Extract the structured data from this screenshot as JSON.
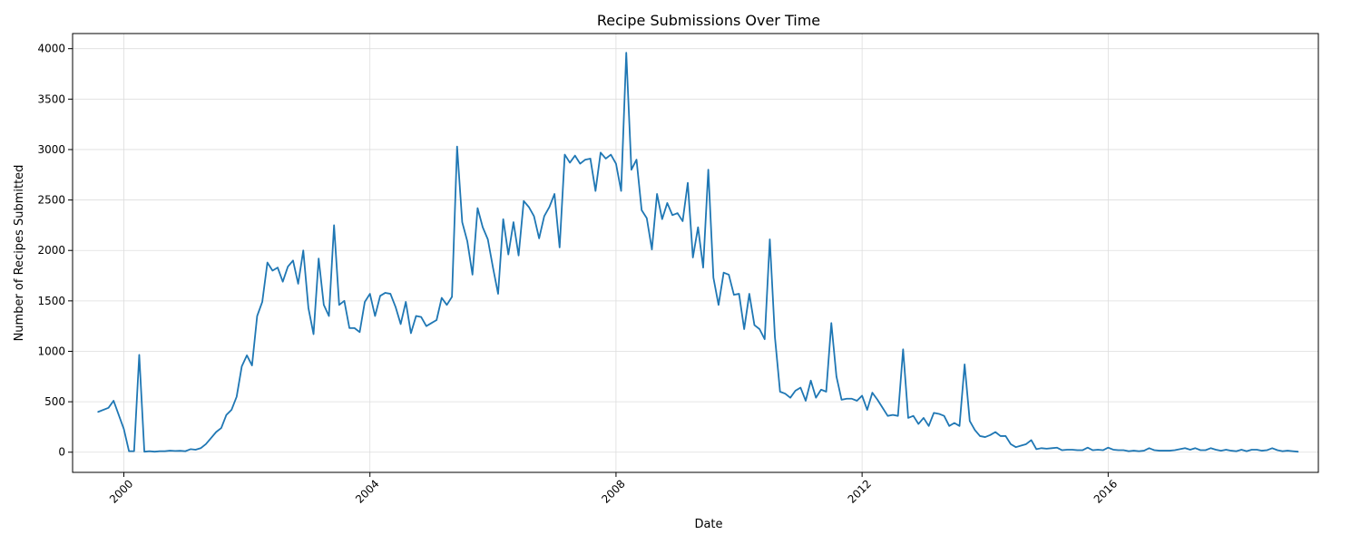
{
  "chart_data": {
    "type": "line",
    "title": "Recipe Submissions Over Time",
    "xlabel": "Date",
    "ylabel": "Number of Recipes Submitted",
    "xlim": [
      "1999-03-01",
      "2019-06-01"
    ],
    "ylim": [
      -200,
      4150
    ],
    "x_ticks": [
      "2000",
      "2004",
      "2008",
      "2012",
      "2016"
    ],
    "y_ticks": [
      0,
      500,
      1000,
      1500,
      2000,
      2500,
      3000,
      3500,
      4000
    ],
    "grid": true,
    "series": [
      {
        "color": "#1f77b4",
        "points": [
          [
            "1999-08",
            400
          ],
          [
            "1999-10",
            440
          ],
          [
            "1999-11",
            510
          ],
          [
            "2000-01",
            230
          ],
          [
            "2000-02",
            10
          ],
          [
            "2000-03",
            10
          ],
          [
            "2000-04",
            965
          ],
          [
            "2000-05",
            5
          ],
          [
            "2000-06",
            10
          ],
          [
            "2000-07",
            5
          ],
          [
            "2000-08",
            10
          ],
          [
            "2000-09",
            10
          ],
          [
            "2000-10",
            15
          ],
          [
            "2000-11",
            12
          ],
          [
            "2000-12",
            14
          ],
          [
            "2001-01",
            10
          ],
          [
            "2001-02",
            30
          ],
          [
            "2001-03",
            25
          ],
          [
            "2001-04",
            40
          ],
          [
            "2001-05",
            80
          ],
          [
            "2001-06",
            140
          ],
          [
            "2001-07",
            200
          ],
          [
            "2001-08",
            240
          ],
          [
            "2001-09",
            370
          ],
          [
            "2001-10",
            420
          ],
          [
            "2001-11",
            550
          ],
          [
            "2001-12",
            850
          ],
          [
            "2002-01",
            960
          ],
          [
            "2002-02",
            860
          ],
          [
            "2002-03",
            1350
          ],
          [
            "2002-04",
            1490
          ],
          [
            "2002-05",
            1880
          ],
          [
            "2002-06",
            1800
          ],
          [
            "2002-07",
            1830
          ],
          [
            "2002-08",
            1690
          ],
          [
            "2002-09",
            1840
          ],
          [
            "2002-10",
            1900
          ],
          [
            "2002-11",
            1670
          ],
          [
            "2002-12",
            2000
          ],
          [
            "2003-01",
            1430
          ],
          [
            "2003-02",
            1170
          ],
          [
            "2003-03",
            1920
          ],
          [
            "2003-04",
            1460
          ],
          [
            "2003-05",
            1350
          ],
          [
            "2003-06",
            2250
          ],
          [
            "2003-07",
            1460
          ],
          [
            "2003-08",
            1500
          ],
          [
            "2003-09",
            1230
          ],
          [
            "2003-10",
            1230
          ],
          [
            "2003-11",
            1190
          ],
          [
            "2003-12",
            1490
          ],
          [
            "2004-01",
            1570
          ],
          [
            "2004-02",
            1350
          ],
          [
            "2004-03",
            1550
          ],
          [
            "2004-04",
            1580
          ],
          [
            "2004-05",
            1570
          ],
          [
            "2004-06",
            1440
          ],
          [
            "2004-07",
            1270
          ],
          [
            "2004-08",
            1490
          ],
          [
            "2004-09",
            1180
          ],
          [
            "2004-10",
            1350
          ],
          [
            "2004-11",
            1340
          ],
          [
            "2004-12",
            1250
          ],
          [
            "2005-01",
            1280
          ],
          [
            "2005-02",
            1310
          ],
          [
            "2005-03",
            1530
          ],
          [
            "2005-04",
            1460
          ],
          [
            "2005-05",
            1540
          ],
          [
            "2005-06",
            3030
          ],
          [
            "2005-07",
            2280
          ],
          [
            "2005-08",
            2090
          ],
          [
            "2005-09",
            1760
          ],
          [
            "2005-10",
            2420
          ],
          [
            "2005-11",
            2230
          ],
          [
            "2005-12",
            2110
          ],
          [
            "2006-01",
            1830
          ],
          [
            "2006-02",
            1570
          ],
          [
            "2006-03",
            2310
          ],
          [
            "2006-04",
            1960
          ],
          [
            "2006-05",
            2280
          ],
          [
            "2006-06",
            1950
          ],
          [
            "2006-07",
            2490
          ],
          [
            "2006-08",
            2430
          ],
          [
            "2006-09",
            2340
          ],
          [
            "2006-10",
            2120
          ],
          [
            "2006-11",
            2340
          ],
          [
            "2006-12",
            2430
          ],
          [
            "2007-01",
            2560
          ],
          [
            "2007-02",
            2030
          ],
          [
            "2007-03",
            2950
          ],
          [
            "2007-04",
            2870
          ],
          [
            "2007-05",
            2940
          ],
          [
            "2007-06",
            2860
          ],
          [
            "2007-07",
            2900
          ],
          [
            "2007-08",
            2910
          ],
          [
            "2007-09",
            2590
          ],
          [
            "2007-10",
            2970
          ],
          [
            "2007-11",
            2910
          ],
          [
            "2007-12",
            2950
          ],
          [
            "2008-01",
            2860
          ],
          [
            "2008-02",
            2590
          ],
          [
            "2008-03",
            3960
          ],
          [
            "2008-04",
            2800
          ],
          [
            "2008-05",
            2900
          ],
          [
            "2008-06",
            2400
          ],
          [
            "2008-07",
            2320
          ],
          [
            "2008-08",
            2010
          ],
          [
            "2008-09",
            2560
          ],
          [
            "2008-10",
            2310
          ],
          [
            "2008-11",
            2470
          ],
          [
            "2008-12",
            2350
          ],
          [
            "2009-01",
            2370
          ],
          [
            "2009-02",
            2290
          ],
          [
            "2009-03",
            2670
          ],
          [
            "2009-04",
            1930
          ],
          [
            "2009-05",
            2230
          ],
          [
            "2009-06",
            1830
          ],
          [
            "2009-07",
            2800
          ],
          [
            "2009-08",
            1730
          ],
          [
            "2009-09",
            1460
          ],
          [
            "2009-10",
            1780
          ],
          [
            "2009-11",
            1760
          ],
          [
            "2009-12",
            1560
          ],
          [
            "2010-01",
            1570
          ],
          [
            "2010-02",
            1220
          ],
          [
            "2010-03",
            1570
          ],
          [
            "2010-04",
            1260
          ],
          [
            "2010-05",
            1220
          ],
          [
            "2010-06",
            1120
          ],
          [
            "2010-07",
            2110
          ],
          [
            "2010-08",
            1140
          ],
          [
            "2010-09",
            600
          ],
          [
            "2010-10",
            580
          ],
          [
            "2010-11",
            540
          ],
          [
            "2010-12",
            610
          ],
          [
            "2011-01",
            640
          ],
          [
            "2011-02",
            510
          ],
          [
            "2011-03",
            710
          ],
          [
            "2011-04",
            540
          ],
          [
            "2011-05",
            620
          ],
          [
            "2011-06",
            600
          ],
          [
            "2011-07",
            1280
          ],
          [
            "2011-08",
            750
          ],
          [
            "2011-09",
            520
          ],
          [
            "2011-10",
            530
          ],
          [
            "2011-11",
            530
          ],
          [
            "2011-12",
            510
          ],
          [
            "2012-01",
            560
          ],
          [
            "2012-02",
            420
          ],
          [
            "2012-03",
            590
          ],
          [
            "2012-04",
            520
          ],
          [
            "2012-05",
            440
          ],
          [
            "2012-06",
            360
          ],
          [
            "2012-07",
            370
          ],
          [
            "2012-08",
            360
          ],
          [
            "2012-09",
            1020
          ],
          [
            "2012-10",
            340
          ],
          [
            "2012-11",
            360
          ],
          [
            "2012-12",
            280
          ],
          [
            "2013-01",
            340
          ],
          [
            "2013-02",
            260
          ],
          [
            "2013-03",
            390
          ],
          [
            "2013-04",
            380
          ],
          [
            "2013-05",
            360
          ],
          [
            "2013-06",
            260
          ],
          [
            "2013-07",
            290
          ],
          [
            "2013-08",
            260
          ],
          [
            "2013-09",
            870
          ],
          [
            "2013-10",
            310
          ],
          [
            "2013-11",
            220
          ],
          [
            "2013-12",
            160
          ],
          [
            "2014-01",
            150
          ],
          [
            "2014-02",
            170
          ],
          [
            "2014-03",
            200
          ],
          [
            "2014-04",
            160
          ],
          [
            "2014-05",
            160
          ],
          [
            "2014-06",
            80
          ],
          [
            "2014-07",
            50
          ],
          [
            "2014-08",
            65
          ],
          [
            "2014-09",
            80
          ],
          [
            "2014-10",
            120
          ],
          [
            "2014-11",
            30
          ],
          [
            "2014-12",
            40
          ],
          [
            "2015-01",
            35
          ],
          [
            "2015-02",
            40
          ],
          [
            "2015-03",
            45
          ],
          [
            "2015-04",
            20
          ],
          [
            "2015-05",
            25
          ],
          [
            "2015-06",
            25
          ],
          [
            "2015-07",
            20
          ],
          [
            "2015-08",
            20
          ],
          [
            "2015-09",
            45
          ],
          [
            "2015-10",
            20
          ],
          [
            "2015-11",
            25
          ],
          [
            "2015-12",
            20
          ],
          [
            "2016-01",
            45
          ],
          [
            "2016-02",
            25
          ],
          [
            "2016-03",
            20
          ],
          [
            "2016-04",
            20
          ],
          [
            "2016-05",
            10
          ],
          [
            "2016-06",
            15
          ],
          [
            "2016-07",
            10
          ],
          [
            "2016-08",
            15
          ],
          [
            "2016-09",
            40
          ],
          [
            "2016-10",
            20
          ],
          [
            "2016-11",
            15
          ],
          [
            "2016-12",
            15
          ],
          [
            "2017-01",
            15
          ],
          [
            "2017-02",
            20
          ],
          [
            "2017-03",
            30
          ],
          [
            "2017-04",
            40
          ],
          [
            "2017-05",
            25
          ],
          [
            "2017-06",
            40
          ],
          [
            "2017-07",
            20
          ],
          [
            "2017-08",
            20
          ],
          [
            "2017-09",
            40
          ],
          [
            "2017-10",
            25
          ],
          [
            "2017-11",
            15
          ],
          [
            "2017-12",
            25
          ],
          [
            "2018-01",
            15
          ],
          [
            "2018-02",
            10
          ],
          [
            "2018-03",
            25
          ],
          [
            "2018-04",
            10
          ],
          [
            "2018-05",
            25
          ],
          [
            "2018-06",
            25
          ],
          [
            "2018-07",
            15
          ],
          [
            "2018-08",
            20
          ],
          [
            "2018-09",
            40
          ],
          [
            "2018-10",
            20
          ],
          [
            "2018-11",
            10
          ],
          [
            "2018-12",
            15
          ],
          [
            "2019-01",
            10
          ],
          [
            "2019-02",
            5
          ]
        ]
      }
    ]
  }
}
